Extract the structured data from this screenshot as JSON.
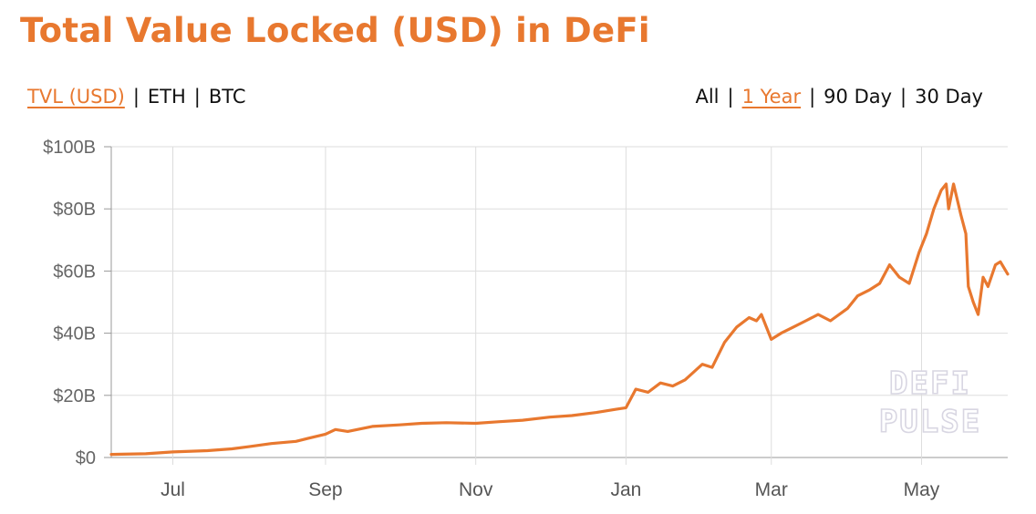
{
  "title": "Total Value Locked (USD) in DeFi",
  "colors": {
    "accent": "#e8782f",
    "grid": "#dddddd",
    "axis": "#999999",
    "watermark": "#d8d6e2"
  },
  "metric_tabs": [
    {
      "label": "TVL (USD)",
      "active": true
    },
    {
      "label": "ETH",
      "active": false
    },
    {
      "label": "BTC",
      "active": false
    }
  ],
  "range_tabs": [
    {
      "label": "All",
      "active": false
    },
    {
      "label": "1 Year",
      "active": true
    },
    {
      "label": "90 Day",
      "active": false
    },
    {
      "label": "30 Day",
      "active": false
    }
  ],
  "separator": "|",
  "watermark": {
    "line1": "DEFI",
    "line2": "PULSE"
  },
  "chart_data": {
    "type": "line",
    "y_tick_labels": [
      "$0",
      "$20B",
      "$40B",
      "$60B",
      "$80B",
      "$100B"
    ],
    "y_tick_values": [
      0,
      20,
      40,
      60,
      80,
      100
    ],
    "ylim": [
      0,
      100
    ],
    "y_unit": "billions USD",
    "x_tick_labels": [
      "Jul",
      "Sep",
      "Nov",
      "Jan",
      "Mar",
      "May"
    ],
    "x_tick_dates": [
      "2020-07-01",
      "2020-09-01",
      "2020-11-01",
      "2021-01-01",
      "2021-03-01",
      "2021-05-01"
    ],
    "xlim": [
      "2020-06-06",
      "2021-06-05"
    ],
    "grid": true,
    "series": [
      {
        "color": "#e8782f",
        "x": [
          "2020-06-06",
          "2020-06-20",
          "2020-07-01",
          "2020-07-15",
          "2020-07-25",
          "2020-08-01",
          "2020-08-10",
          "2020-08-20",
          "2020-08-25",
          "2020-09-01",
          "2020-09-05",
          "2020-09-10",
          "2020-09-20",
          "2020-10-01",
          "2020-10-10",
          "2020-10-20",
          "2020-11-01",
          "2020-11-10",
          "2020-11-20",
          "2020-12-01",
          "2020-12-10",
          "2020-12-20",
          "2020-12-28",
          "2021-01-01",
          "2021-01-05",
          "2021-01-10",
          "2021-01-15",
          "2021-01-20",
          "2021-01-25",
          "2021-02-01",
          "2021-02-05",
          "2021-02-10",
          "2021-02-15",
          "2021-02-20",
          "2021-02-23",
          "2021-02-25",
          "2021-03-01",
          "2021-03-05",
          "2021-03-10",
          "2021-03-15",
          "2021-03-20",
          "2021-03-25",
          "2021-04-01",
          "2021-04-05",
          "2021-04-10",
          "2021-04-14",
          "2021-04-18",
          "2021-04-22",
          "2021-04-26",
          "2021-04-30",
          "2021-05-03",
          "2021-05-06",
          "2021-05-09",
          "2021-05-11",
          "2021-05-12",
          "2021-05-14",
          "2021-05-17",
          "2021-05-19",
          "2021-05-20",
          "2021-05-22",
          "2021-05-24",
          "2021-05-26",
          "2021-05-28",
          "2021-05-31",
          "2021-06-02",
          "2021-06-05"
        ],
        "y": [
          1.0,
          1.2,
          1.8,
          2.2,
          2.8,
          3.5,
          4.5,
          5.2,
          6.2,
          7.5,
          9.0,
          8.4,
          10.0,
          10.5,
          11.0,
          11.2,
          11.0,
          11.5,
          12.0,
          13.0,
          13.5,
          14.5,
          15.5,
          16.0,
          22.0,
          21.0,
          24.0,
          23.0,
          25.0,
          30.0,
          29.0,
          37.0,
          42.0,
          45.0,
          44.0,
          46.0,
          38.0,
          40.0,
          42.0,
          44.0,
          46.0,
          44.0,
          48.0,
          52.0,
          54.0,
          56.0,
          62.0,
          58.0,
          56.0,
          66.0,
          72.0,
          80.0,
          86.0,
          88.0,
          80.0,
          88.0,
          78.0,
          72.0,
          55.0,
          50.0,
          46.0,
          58.0,
          55.0,
          62.0,
          63.0,
          59.0
        ]
      }
    ]
  }
}
